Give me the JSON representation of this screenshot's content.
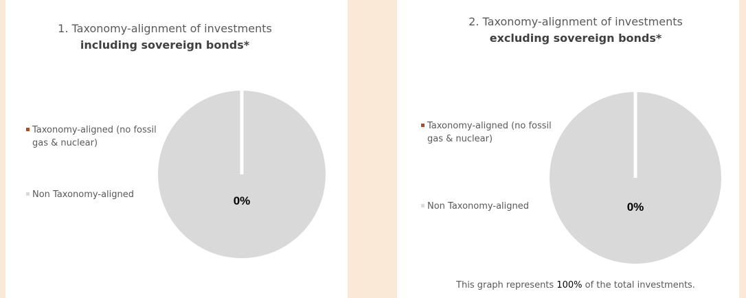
{
  "chart_data": [
    {
      "type": "pie",
      "title": "1. Taxonomy-alignment of investments",
      "subtitle": "including sovereign bonds*",
      "categories": [
        "Taxonomy-aligned (no fossil gas & nuclear)",
        "Non Taxonomy-aligned"
      ],
      "values": [
        0,
        100
      ],
      "value_labels": [
        "0%",
        null
      ],
      "colors": [
        "#a0522d",
        "#d9d9d9"
      ]
    },
    {
      "type": "pie",
      "title": "2. Taxonomy-alignment of investments",
      "subtitle": "excluding sovereign bonds*",
      "categories": [
        "Taxonomy-aligned (no fossil gas & nuclear)",
        "Non Taxonomy-aligned"
      ],
      "values": [
        0,
        100
      ],
      "value_labels": [
        "0%",
        null
      ],
      "colors": [
        "#a0522d",
        "#d9d9d9"
      ],
      "note": {
        "prefix": "This graph represents",
        "value": "100%",
        "suffix": "of the total investments."
      }
    }
  ]
}
